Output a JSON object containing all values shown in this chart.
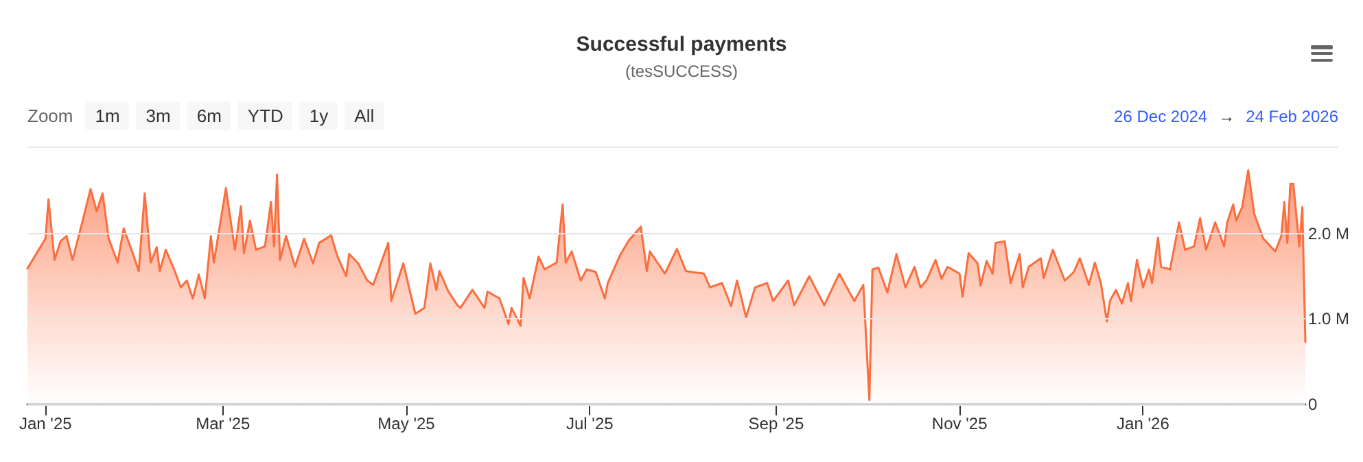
{
  "chart_data": {
    "type": "area",
    "title": "Successful payments",
    "subtitle": "(tesSUCCESS)",
    "annotations": [
      "Zoom",
      "1m",
      "3m",
      "6m",
      "YTD",
      "1y",
      "All",
      "26 Dec 2024",
      "→",
      "24 Feb 2026"
    ],
    "x": [
      "2024-12-26",
      "2025-01-01",
      "2025-01-02",
      "2025-01-04",
      "2025-01-06",
      "2025-01-08",
      "2025-01-10",
      "2025-01-13",
      "2025-01-16",
      "2025-01-18",
      "2025-01-20",
      "2025-01-22",
      "2025-01-25",
      "2025-01-27",
      "2025-01-30",
      "2025-02-01",
      "2025-02-03",
      "2025-02-05",
      "2025-02-07",
      "2025-02-08",
      "2025-02-10",
      "2025-02-13",
      "2025-02-15",
      "2025-02-17",
      "2025-02-19",
      "2025-02-21",
      "2025-02-23",
      "2025-02-25",
      "2025-02-26",
      "2025-03-02",
      "2025-03-05",
      "2025-03-07",
      "2025-03-08",
      "2025-03-10",
      "2025-03-12",
      "2025-03-15",
      "2025-03-17",
      "2025-03-18",
      "2025-03-19",
      "2025-03-20",
      "2025-03-22",
      "2025-03-25",
      "2025-03-28",
      "2025-03-31",
      "2025-04-02",
      "2025-04-06",
      "2025-04-08",
      "2025-04-11",
      "2025-04-12",
      "2025-04-15",
      "2025-04-18",
      "2025-04-20",
      "2025-04-25",
      "2025-04-26",
      "2025-04-30",
      "2025-05-04",
      "2025-05-07",
      "2025-05-09",
      "2025-05-11",
      "2025-05-12",
      "2025-05-15",
      "2025-05-18",
      "2025-05-19",
      "2025-05-23",
      "2025-05-27",
      "2025-05-28",
      "2025-06-01",
      "2025-06-04",
      "2025-06-05",
      "2025-06-08",
      "2025-06-09",
      "2025-06-11",
      "2025-06-14",
      "2025-06-16",
      "2025-06-20",
      "2025-06-22",
      "2025-06-23",
      "2025-06-25",
      "2025-06-28",
      "2025-06-30",
      "2025-07-03",
      "2025-07-06",
      "2025-07-07",
      "2025-07-11",
      "2025-07-14",
      "2025-07-18",
      "2025-07-20",
      "2025-07-21",
      "2025-07-26",
      "2025-07-30",
      "2025-08-02",
      "2025-08-08",
      "2025-08-10",
      "2025-08-14",
      "2025-08-17",
      "2025-08-19",
      "2025-08-22",
      "2025-08-25",
      "2025-08-29",
      "2025-08-31",
      "2025-09-05",
      "2025-09-07",
      "2025-09-12",
      "2025-09-17",
      "2025-09-22",
      "2025-09-27",
      "2025-09-30",
      "2025-10-02",
      "2025-10-03",
      "2025-10-05",
      "2025-10-08",
      "2025-10-11",
      "2025-10-14",
      "2025-10-17",
      "2025-10-19",
      "2025-10-21",
      "2025-10-24",
      "2025-10-26",
      "2025-10-28",
      "2025-11-01",
      "2025-11-02",
      "2025-11-04",
      "2025-11-07",
      "2025-11-08",
      "2025-11-10",
      "2025-11-12",
      "2025-11-13",
      "2025-11-16",
      "2025-11-18",
      "2025-11-21",
      "2025-11-22",
      "2025-11-24",
      "2025-11-28",
      "2025-11-29",
      "2025-12-02",
      "2025-12-06",
      "2025-12-09",
      "2025-12-11",
      "2025-12-14",
      "2025-12-16",
      "2025-12-18",
      "2025-12-20",
      "2025-12-21",
      "2025-12-23",
      "2025-12-25",
      "2025-12-27",
      "2025-12-28",
      "2025-12-30",
      "2026-01-01",
      "2026-01-03",
      "2026-01-04",
      "2026-01-06",
      "2026-01-07",
      "2026-01-10",
      "2026-01-13",
      "2026-01-15",
      "2026-01-18",
      "2026-01-20",
      "2026-01-22",
      "2026-01-25",
      "2026-01-28",
      "2026-01-29",
      "2026-01-31",
      "2026-02-01",
      "2026-02-03",
      "2026-02-05",
      "2026-02-07",
      "2026-02-10",
      "2026-02-14",
      "2026-02-16",
      "2026-02-17",
      "2026-02-18",
      "2026-02-19",
      "2026-02-20",
      "2026-02-22",
      "2026-02-23",
      "2026-02-24"
    ],
    "series": [
      {
        "color": "#fa6e3f",
        "values": [
          1.59,
          1.94,
          2.4,
          1.69,
          1.91,
          1.97,
          1.69,
          2.1,
          2.52,
          2.26,
          2.47,
          1.94,
          1.66,
          2.06,
          1.77,
          1.56,
          2.47,
          1.66,
          1.84,
          1.56,
          1.81,
          1.56,
          1.37,
          1.45,
          1.24,
          1.52,
          1.24,
          1.97,
          1.66,
          2.53,
          1.81,
          2.32,
          1.77,
          2.15,
          1.81,
          1.85,
          2.37,
          1.85,
          2.69,
          1.69,
          1.97,
          1.61,
          1.94,
          1.65,
          1.89,
          1.98,
          1.74,
          1.5,
          1.76,
          1.65,
          1.45,
          1.4,
          1.89,
          1.21,
          1.65,
          1.06,
          1.13,
          1.65,
          1.34,
          1.56,
          1.32,
          1.16,
          1.13,
          1.34,
          1.13,
          1.32,
          1.24,
          0.94,
          1.13,
          0.92,
          1.48,
          1.24,
          1.73,
          1.58,
          1.66,
          2.34,
          1.66,
          1.79,
          1.45,
          1.58,
          1.55,
          1.24,
          1.42,
          1.74,
          1.92,
          2.08,
          1.56,
          1.79,
          1.53,
          1.82,
          1.56,
          1.53,
          1.37,
          1.42,
          1.15,
          1.45,
          1.02,
          1.37,
          1.42,
          1.21,
          1.45,
          1.16,
          1.5,
          1.16,
          1.53,
          1.21,
          1.4,
          0.05,
          1.58,
          1.6,
          1.31,
          1.76,
          1.37,
          1.61,
          1.37,
          1.45,
          1.69,
          1.47,
          1.61,
          1.53,
          1.26,
          1.77,
          1.65,
          1.39,
          1.68,
          1.53,
          1.89,
          1.91,
          1.42,
          1.76,
          1.37,
          1.61,
          1.71,
          1.48,
          1.81,
          1.45,
          1.55,
          1.71,
          1.4,
          1.66,
          1.42,
          0.97,
          1.21,
          1.34,
          1.18,
          1.42,
          1.21,
          1.69,
          1.37,
          1.58,
          1.42,
          1.95,
          1.61,
          1.58,
          2.13,
          1.81,
          1.85,
          2.18,
          1.81,
          2.13,
          1.85,
          2.13,
          2.34,
          2.15,
          2.31,
          2.74,
          2.23,
          1.94,
          1.79,
          1.97,
          2.37,
          1.89,
          2.58,
          2.58,
          1.85,
          2.31,
          0.73
        ]
      }
    ],
    "xlim": [
      "2024-12-26",
      "2026-02-24"
    ],
    "xticks": [
      {
        "value": "2025-01-01",
        "label": "Jan '25"
      },
      {
        "value": "2025-03-01",
        "label": "Mar '25"
      },
      {
        "value": "2025-05-01",
        "label": "May '25"
      },
      {
        "value": "2025-07-01",
        "label": "Jul '25"
      },
      {
        "value": "2025-09-01",
        "label": "Sep '25"
      },
      {
        "value": "2025-11-01",
        "label": "Nov '25"
      },
      {
        "value": "2026-01-01",
        "label": "Jan '26"
      }
    ],
    "ylim": [
      0,
      3
    ],
    "yticks": [
      0,
      {
        "value": 1,
        "label": "1.0 M"
      },
      {
        "value": 2,
        "label": "2.0 M"
      }
    ],
    "grid": "y",
    "marker": "none",
    "line_style": "solid"
  }
}
